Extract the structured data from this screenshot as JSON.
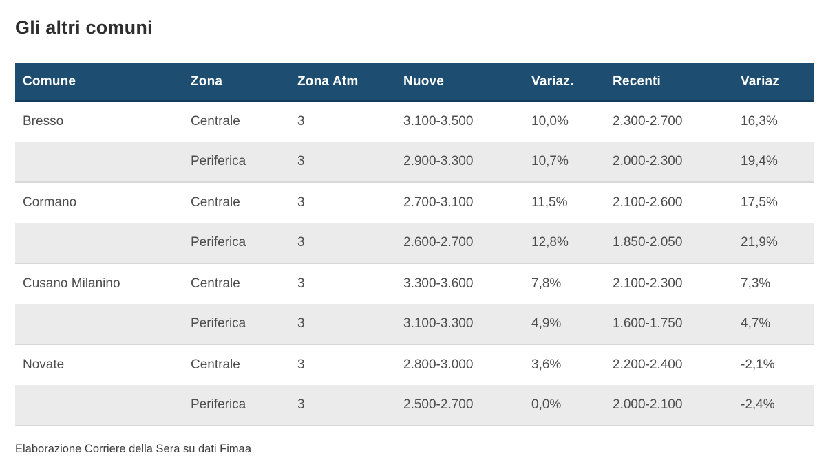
{
  "title": "Gli altri comuni",
  "source_note": "Elaborazione Corriere della Sera su dati Fimaa",
  "chart_data": {
    "type": "table",
    "title": "Gli altri comuni",
    "columns": [
      "Comune",
      "Zona",
      "Zona Atm",
      "Nuove",
      "Variaz.",
      "Recenti",
      "Variaz"
    ],
    "rows": [
      [
        "Bresso",
        "Centrale",
        "3",
        "3.100-3.500",
        "10,0%",
        "2.300-2.700",
        "16,3%"
      ],
      [
        "",
        "Periferica",
        "3",
        "2.900-3.300",
        "10,7%",
        "2.000-2.300",
        "19,4%"
      ],
      [
        "Cormano",
        "Centrale",
        "3",
        "2.700-3.100",
        "11,5%",
        "2.100-2.600",
        "17,5%"
      ],
      [
        "",
        "Periferica",
        "3",
        "2.600-2.700",
        "12,8%",
        "1.850-2.050",
        "21,9%"
      ],
      [
        "Cusano Milanino",
        "Centrale",
        "3",
        "3.300-3.600",
        "7,8%",
        "2.100-2.300",
        "7,3%"
      ],
      [
        "",
        "Periferica",
        "3",
        "3.100-3.300",
        "4,9%",
        "1.600-1.750",
        "4,7%"
      ],
      [
        "Novate",
        "Centrale",
        "3",
        "2.800-3.000",
        "3,6%",
        "2.200-2.400",
        "-2,1%"
      ],
      [
        "",
        "Periferica",
        "3",
        "2.500-2.700",
        "0,0%",
        "2.000-2.100",
        "-2,4%"
      ]
    ],
    "layout_hints": {
      "zebra_rows": "Periferica rows shaded",
      "header_position": "top",
      "alignment": "left"
    }
  },
  "colors": {
    "header_bg": "#1d4e71",
    "header_border": "#143c59",
    "header_text": "#ffffff",
    "row_alt_bg": "#ebebeb",
    "row_separator": "#d8d8d8",
    "cell_text": "#4d4d4d",
    "title_text": "#2e2e2e",
    "footer_text": "#3f3f3f"
  }
}
